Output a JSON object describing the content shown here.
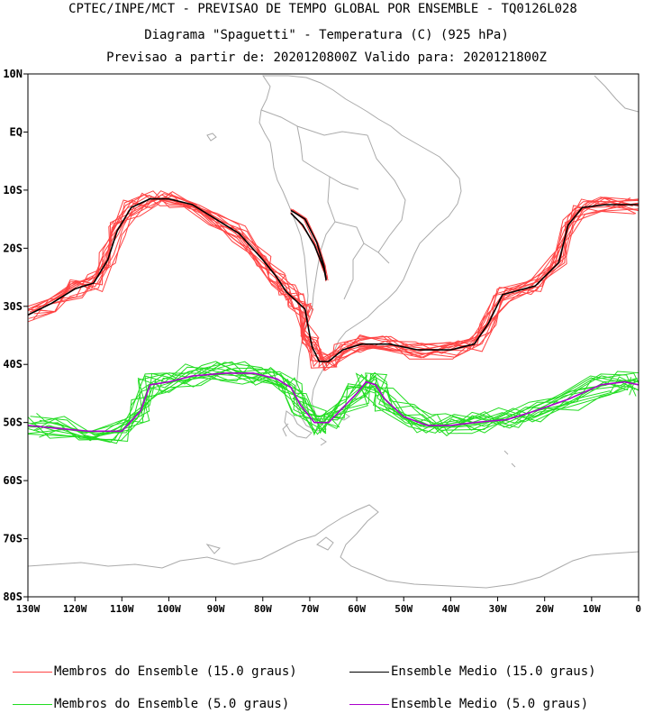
{
  "titles": {
    "line1": "CPTEC/INPE/MCT - PREVISAO DE TEMPO GLOBAL POR ENSEMBLE - TQ0126L028",
    "line2": "Diagrama \"Spaguetti\" - Temperatura (C) (925 hPa)",
    "line3": "Previsao a partir de: 2020120800Z  Valido para: 2020121800Z"
  },
  "axes": {
    "lat_labels": [
      "10N",
      "EQ",
      "10S",
      "20S",
      "30S",
      "40S",
      "50S",
      "60S",
      "70S",
      "80S"
    ],
    "lon_labels": [
      "130W",
      "120W",
      "110W",
      "100W",
      "90W",
      "80W",
      "70W",
      "60W",
      "50W",
      "40W",
      "30W",
      "20W",
      "10W",
      "0"
    ]
  },
  "colors": {
    "members15": "#ff4444",
    "mean15": "#000000",
    "members5": "#22dd22",
    "mean5": "#aa00cc",
    "coast": "#aaaaaa"
  },
  "legend": {
    "members15": "Membros do Ensemble (15.0 graus)",
    "mean15": "Ensemble Medio (15.0 graus)",
    "members5": "Membros do Ensemble (5.0 graus)",
    "mean5": "Ensemble Medio (5.0 graus)"
  },
  "map_data": {
    "lon_range": [
      -130,
      0
    ],
    "lat_range": [
      -80,
      10
    ],
    "mean15_path": [
      [
        -130,
        -31.5
      ],
      [
        -125,
        -29.5
      ],
      [
        -120,
        -27
      ],
      [
        -116,
        -26
      ],
      [
        -113,
        -22
      ],
      [
        -111,
        -17
      ],
      [
        -108,
        -13
      ],
      [
        -104,
        -11.5
      ],
      [
        -100,
        -11.5
      ],
      [
        -95,
        -12.5
      ],
      [
        -90,
        -15
      ],
      [
        -85,
        -17.5
      ],
      [
        -80,
        -22
      ],
      [
        -77,
        -25
      ],
      [
        -75,
        -27.5
      ],
      [
        -73,
        -29
      ],
      [
        -71,
        -30.5
      ],
      [
        -70,
        -35
      ],
      [
        -69.5,
        -37
      ],
      [
        -68,
        -39.5
      ],
      [
        -66,
        -39.5
      ],
      [
        -63,
        -37.5
      ],
      [
        -59,
        -36.5
      ],
      [
        -53,
        -36.5
      ],
      [
        -47,
        -37.5
      ],
      [
        -40,
        -37.5
      ],
      [
        -35,
        -36.5
      ],
      [
        -32,
        -33
      ],
      [
        -29,
        -28
      ],
      [
        -22,
        -26.5
      ],
      [
        -17,
        -22.5
      ],
      [
        -15,
        -16
      ],
      [
        -12,
        -13
      ],
      [
        -7,
        -12.5
      ],
      [
        0,
        -12.5
      ]
    ],
    "mean15_andes": [
      [
        -74,
        -13.5
      ],
      [
        -71,
        -15
      ],
      [
        -68.5,
        -19
      ],
      [
        -67,
        -23
      ],
      [
        -66.5,
        -25.5
      ],
      [
        -67,
        -23.5
      ],
      [
        -69,
        -19.5
      ],
      [
        -71.5,
        -16
      ],
      [
        -74,
        -14
      ]
    ],
    "mean5_path": [
      [
        -130,
        -50.5
      ],
      [
        -124,
        -51
      ],
      [
        -117,
        -51.5
      ],
      [
        -110,
        -51.5
      ],
      [
        -106,
        -48
      ],
      [
        -104,
        -43.5
      ],
      [
        -100,
        -43
      ],
      [
        -95,
        -42
      ],
      [
        -88,
        -41.5
      ],
      [
        -82,
        -41.5
      ],
      [
        -77,
        -42.5
      ],
      [
        -74,
        -44
      ],
      [
        -72,
        -47
      ],
      [
        -69,
        -50
      ],
      [
        -66,
        -50
      ],
      [
        -63,
        -47.5
      ],
      [
        -60,
        -45
      ],
      [
        -58,
        -43
      ],
      [
        -56,
        -43.5
      ],
      [
        -54,
        -46
      ],
      [
        -50,
        -49
      ],
      [
        -45,
        -50.5
      ],
      [
        -40,
        -50.5
      ],
      [
        -35,
        -50
      ],
      [
        -28,
        -49.5
      ],
      [
        -22,
        -48
      ],
      [
        -15,
        -46
      ],
      [
        -8,
        -43.5
      ],
      [
        -3,
        -43
      ],
      [
        0,
        -43.5
      ]
    ]
  }
}
